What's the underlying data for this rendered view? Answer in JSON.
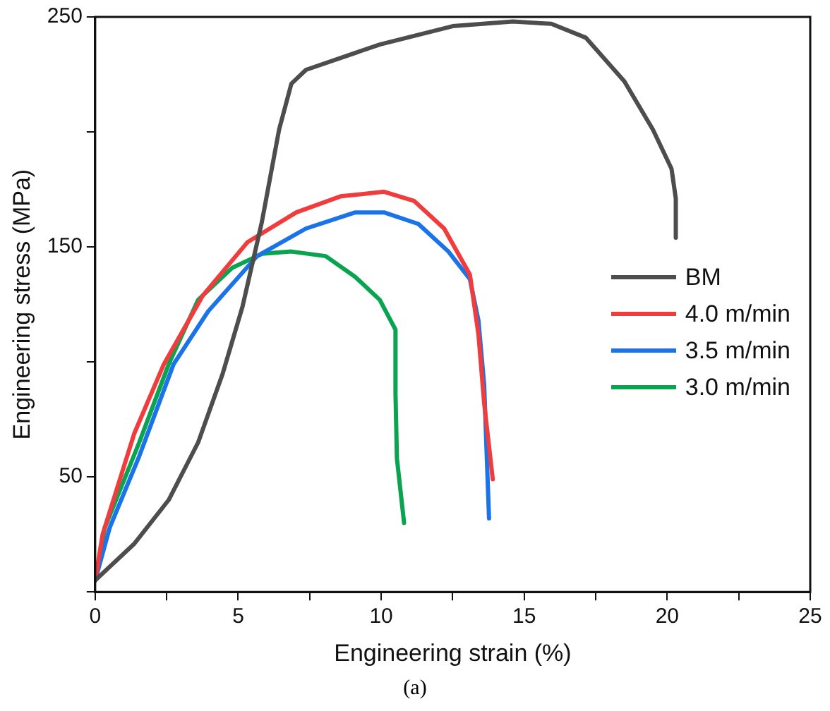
{
  "chart_data": {
    "type": "line",
    "xlabel": "Engineering strain (%)",
    "ylabel": "Engineering stress (MPa)",
    "xlim": [
      0,
      25
    ],
    "ylim": [
      0,
      250
    ],
    "xticks": [
      0,
      {
        "value": 2.5,
        "label": null
      },
      5,
      {
        "value": 7.5,
        "label": null
      },
      10,
      {
        "value": 12.5,
        "label": null
      },
      15,
      {
        "value": 17.5,
        "label": null
      },
      20,
      {
        "value": 22.5,
        "label": null
      },
      25
    ],
    "yticks": [
      {
        "value": 0,
        "label": null
      },
      50,
      {
        "value": 100,
        "label": null
      },
      150,
      {
        "value": 200,
        "label": null
      },
      250
    ],
    "grid": false,
    "legend": "right",
    "marker": "none",
    "line_style": "solid",
    "annotations": [
      "(a)"
    ],
    "series": [
      {
        "name": "BM",
        "color": "#4d4d4d",
        "x": [
          0,
          1.37,
          2.57,
          3.6,
          4.46,
          5.15,
          5.83,
          6.43,
          6.86,
          7.37,
          9.95,
          12.5,
          14.6,
          15.95,
          17.15,
          18.5,
          19.5,
          20.15,
          20.3,
          20.3
        ],
        "values": [
          5,
          21,
          40,
          65,
          95,
          124,
          161,
          201,
          221,
          227,
          238,
          246,
          248,
          247,
          241,
          222,
          201,
          184,
          171,
          154
        ]
      },
      {
        "name": "4.0 m/min",
        "color": "#f03c3c",
        "x": [
          0,
          0.26,
          1.37,
          2.4,
          3.77,
          5.32,
          7.03,
          8.58,
          10.1,
          11.15,
          12.2,
          13.1,
          13.4,
          13.6,
          13.9
        ],
        "values": [
          5,
          25,
          69,
          99,
          129,
          152,
          165,
          172,
          174,
          170,
          158,
          138,
          112,
          82,
          49
        ]
      },
      {
        "name": "3.5 m/min",
        "color": "#1a73e8",
        "x": [
          0,
          0.51,
          1.54,
          2.74,
          3.95,
          5.66,
          7.37,
          9.09,
          10.1,
          11.3,
          12.35,
          13.1,
          13.4,
          13.6,
          13.77
        ],
        "values": [
          5,
          28,
          59,
          99,
          122,
          146,
          158,
          165,
          165,
          160,
          148,
          136,
          118,
          90,
          32
        ]
      },
      {
        "name": "3.0 m/min",
        "color": "#0aa350",
        "x": [
          0,
          0.34,
          1.54,
          2.57,
          3.6,
          4.8,
          5.83,
          6.86,
          8.06,
          9.09,
          9.95,
          10.5,
          10.5,
          10.55,
          10.8
        ],
        "values": [
          5,
          28,
          65,
          99,
          127,
          141,
          147,
          148,
          146,
          137,
          127,
          114,
          86,
          58,
          30
        ]
      }
    ]
  }
}
